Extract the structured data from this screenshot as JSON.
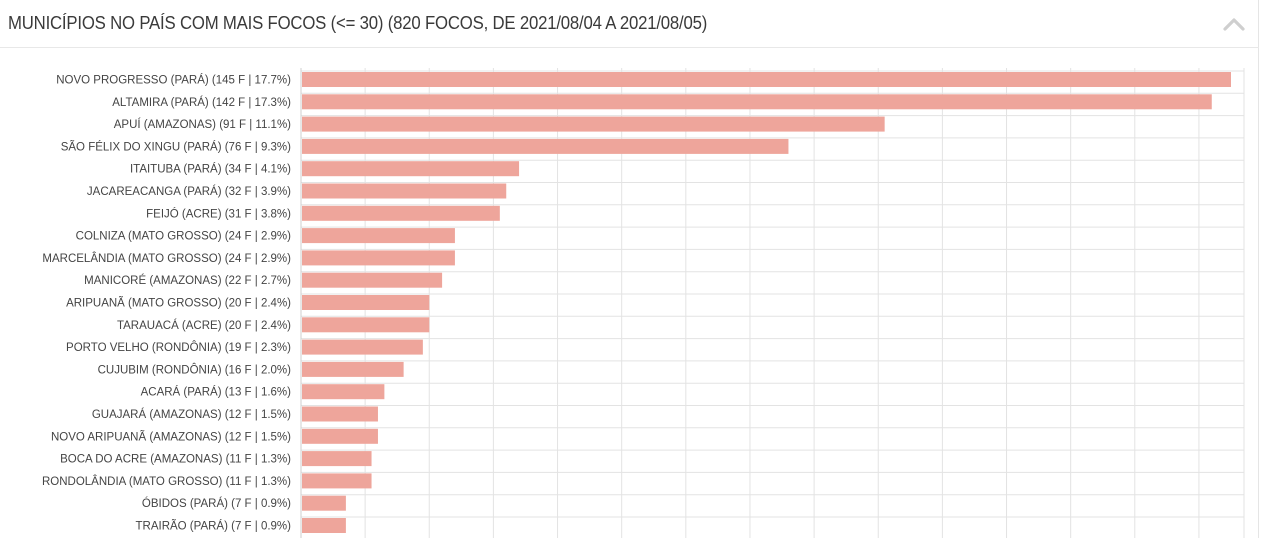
{
  "header": {
    "title": "MUNICÍPIOS NO PAÍS COM MAIS FOCOS (<= 30) (820 FOCOS, DE 2021/08/04 A 2021/08/05)",
    "collapse_icon": "chevron-up-icon"
  },
  "colors": {
    "bar": "#eea59b",
    "grid": "#e3e3e3",
    "axis": "#cfcfcf"
  },
  "chart_data": {
    "type": "bar",
    "orientation": "horizontal",
    "title": "MUNICÍPIOS NO PAÍS COM MAIS FOCOS (<= 30) (820 FOCOS, DE 2021/08/04 A 2021/08/05)",
    "xlabel": "",
    "ylabel": "",
    "xlim": [
      0,
      145
    ],
    "grid": true,
    "categories": [
      "NOVO PROGRESSO (PARÁ) (145 F | 17.7%)",
      "ALTAMIRA (PARÁ) (142 F | 17.3%)",
      "APUÍ (AMAZONAS) (91 F | 11.1%)",
      "SÃO FÉLIX DO XINGU (PARÁ) (76 F | 9.3%)",
      "ITAITUBA (PARÁ) (34 F | 4.1%)",
      "JACAREACANGA (PARÁ) (32 F | 3.9%)",
      "FEIJÓ (ACRE) (31 F | 3.8%)",
      "COLNIZA (MATO GROSSO) (24 F | 2.9%)",
      "MARCELÂNDIA (MATO GROSSO) (24 F | 2.9%)",
      "MANICORÉ (AMAZONAS) (22 F | 2.7%)",
      "ARIPUANÃ (MATO GROSSO) (20 F | 2.4%)",
      "TARAUACÁ (ACRE) (20 F | 2.4%)",
      "PORTO VELHO (RONDÔNIA) (19 F | 2.3%)",
      "CUJUBIM (RONDÔNIA) (16 F | 2.0%)",
      "ACARÁ (PARÁ) (13 F | 1.6%)",
      "GUAJARÁ (AMAZONAS) (12 F | 1.5%)",
      "NOVO ARIPUANÃ (AMAZONAS) (12 F | 1.5%)",
      "BOCA DO ACRE (AMAZONAS) (11 F | 1.3%)",
      "RONDOLÂNDIA (MATO GROSSO) (11 F | 1.3%)",
      "ÓBIDOS (PARÁ) (7 F | 0.9%)",
      "TRAIRÃO (PARÁ) (7 F | 0.9%)"
    ],
    "values": [
      145,
      142,
      91,
      76,
      34,
      32,
      31,
      24,
      24,
      22,
      20,
      20,
      19,
      16,
      13,
      12,
      12,
      11,
      11,
      7,
      7
    ]
  }
}
